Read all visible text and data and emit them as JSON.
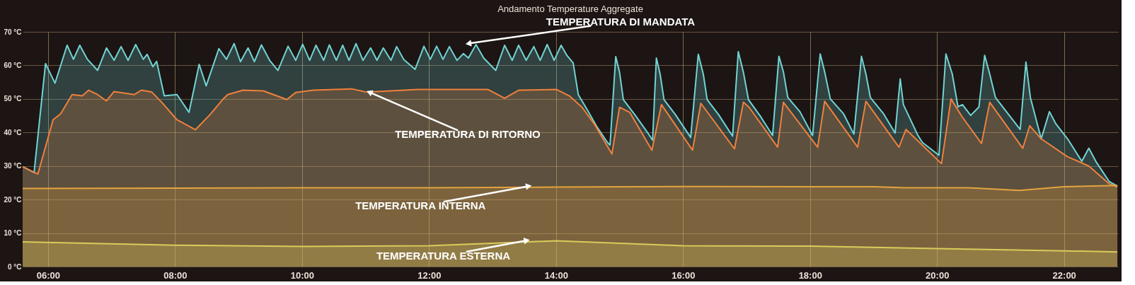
{
  "chart_data": {
    "type": "area",
    "title": "Andamento Temperature Aggregate",
    "xlim": [
      5.6,
      22.85
    ],
    "ylim": [
      0,
      70
    ],
    "xticks": [
      {
        "value": 6,
        "label": "06:00"
      },
      {
        "value": 8,
        "label": "08:00"
      },
      {
        "value": 10,
        "label": "10:00"
      },
      {
        "value": 12,
        "label": "12:00"
      },
      {
        "value": 14,
        "label": "14:00"
      },
      {
        "value": 16,
        "label": "16:00"
      },
      {
        "value": 18,
        "label": "18:00"
      },
      {
        "value": 20,
        "label": "20:00"
      },
      {
        "value": 22,
        "label": "22:00"
      }
    ],
    "yticks": [
      {
        "value": 0,
        "label": "0 °C"
      },
      {
        "value": 10,
        "label": "10 °C"
      },
      {
        "value": 20,
        "label": "20 °C"
      },
      {
        "value": 30,
        "label": "30 °C"
      },
      {
        "value": 40,
        "label": "40 °C"
      },
      {
        "value": 50,
        "label": "50 °C"
      },
      {
        "value": 60,
        "label": "60 °C"
      },
      {
        "value": 70,
        "label": "70 °C"
      }
    ],
    "grid": true,
    "marker": "none",
    "line_style": "solid",
    "series": [
      {
        "color": "#72d3d3",
        "x": [
          5.6,
          5.78,
          5.96,
          6.11,
          6.3,
          6.4,
          6.5,
          6.62,
          6.78,
          6.92,
          7.04,
          7.15,
          7.26,
          7.38,
          7.5,
          7.56,
          7.65,
          7.71,
          7.83,
          8.03,
          8.22,
          8.38,
          8.49,
          8.69,
          8.81,
          8.93,
          9.03,
          9.15,
          9.25,
          9.36,
          9.49,
          9.62,
          9.78,
          9.9,
          10.01,
          10.12,
          10.22,
          10.34,
          10.43,
          10.54,
          10.64,
          10.74,
          10.85,
          10.96,
          11.08,
          11.18,
          11.28,
          11.4,
          11.49,
          11.6,
          11.78,
          11.92,
          12.02,
          12.12,
          12.22,
          12.32,
          12.44,
          12.54,
          12.62,
          12.74,
          12.86,
          13.05,
          13.19,
          13.31,
          13.41,
          13.53,
          13.65,
          13.75,
          13.86,
          13.97,
          14.08,
          14.17,
          14.27,
          14.35,
          14.49,
          14.65,
          14.81,
          14.85,
          14.94,
          15.0,
          15.06,
          15.24,
          15.44,
          15.52,
          15.58,
          15.64,
          15.7,
          15.88,
          16.12,
          16.24,
          16.32,
          16.38,
          16.56,
          16.78,
          16.87,
          16.95,
          17.03,
          17.23,
          17.41,
          17.51,
          17.58,
          17.65,
          17.84,
          18.04,
          18.16,
          18.23,
          18.32,
          18.53,
          18.69,
          18.81,
          18.88,
          18.95,
          19.16,
          19.34,
          19.42,
          19.47,
          19.7,
          19.77,
          20.03,
          20.14,
          20.24,
          20.33,
          20.4,
          20.53,
          20.66,
          20.75,
          20.83,
          20.92,
          21.12,
          21.31,
          21.4,
          21.47,
          21.64,
          21.77,
          21.87,
          22.07,
          22.28,
          22.39,
          22.5,
          22.71,
          22.84
        ],
        "values": [
          29.8,
          28,
          60.5,
          54.7,
          66,
          61.8,
          66,
          61.8,
          58.5,
          65.2,
          61.5,
          65.6,
          61.5,
          66.2,
          61.8,
          63.3,
          59.6,
          61.2,
          50.9,
          51.3,
          46,
          60.3,
          53.9,
          65,
          61.8,
          66.5,
          61.1,
          65.2,
          61.1,
          66.1,
          61.5,
          58.5,
          65.7,
          61.5,
          66.3,
          61.5,
          66,
          61.5,
          66.1,
          61.5,
          66,
          61.5,
          66.5,
          61.5,
          65.2,
          61.5,
          65.2,
          61.5,
          65.6,
          61.8,
          58.8,
          65.7,
          61.8,
          65.7,
          61.8,
          65.6,
          61.5,
          63.5,
          62.2,
          66.2,
          62.2,
          58.5,
          66,
          61.5,
          66,
          61.5,
          65.6,
          61.5,
          66.2,
          61.5,
          66,
          63,
          60.7,
          51.3,
          46.8,
          41.5,
          37,
          36.2,
          62.6,
          58,
          49.8,
          45.3,
          40,
          37.7,
          62.2,
          57.3,
          49.8,
          45.3,
          38.5,
          63.3,
          57.3,
          49.8,
          45.3,
          38.9,
          64.1,
          58,
          49.8,
          44.5,
          39.1,
          62.7,
          58.1,
          50.4,
          46.2,
          39.1,
          63.4,
          58.1,
          50,
          45.5,
          39.5,
          62.7,
          57.4,
          50.4,
          45.5,
          39.8,
          56,
          48.3,
          39.1,
          37,
          33.2,
          63.4,
          57.4,
          47.6,
          48.3,
          45.1,
          47.6,
          63,
          57.4,
          50.4,
          45.5,
          40.9,
          61,
          50.4,
          38.1,
          46.2,
          42.6,
          37.7,
          31.4,
          35.3,
          31.4,
          25.4,
          24
        ]
      },
      {
        "color": "#f0803c",
        "x": [
          5.6,
          5.84,
          6.08,
          6.2,
          6.38,
          6.54,
          6.64,
          6.78,
          6.92,
          7.04,
          7.36,
          7.47,
          7.63,
          7.79,
          8.03,
          8.32,
          8.55,
          8.75,
          8.83,
          9.07,
          9.39,
          9.76,
          9.9,
          10.18,
          10.78,
          11.02,
          11.82,
          12.93,
          13.19,
          13.41,
          14.01,
          14.21,
          14.41,
          14.61,
          14.88,
          15.0,
          15.16,
          15.51,
          15.66,
          16.15,
          16.28,
          16.81,
          16.95,
          17.04,
          17.49,
          17.58,
          18.12,
          18.23,
          18.75,
          18.88,
          19.4,
          19.51,
          20.07,
          20.22,
          20.39,
          20.7,
          20.83,
          21.35,
          21.46,
          21.64,
          22.05,
          22.39,
          22.71,
          22.84
        ],
        "values": [
          29.8,
          27.6,
          43.8,
          45.6,
          51.3,
          50.9,
          52.6,
          51.3,
          49.4,
          52.2,
          51.3,
          52.6,
          52.1,
          49,
          43.8,
          40.8,
          45.3,
          49.8,
          51.3,
          52.6,
          52.4,
          49.8,
          51.9,
          52.6,
          53,
          52,
          52.8,
          52.8,
          50.2,
          52.6,
          52.8,
          50.9,
          47.5,
          42.3,
          33.6,
          47.5,
          46,
          34.7,
          48.3,
          34.7,
          48.7,
          35.1,
          49,
          47.5,
          35.6,
          49,
          35.6,
          49.3,
          35.6,
          49.3,
          35.6,
          40.9,
          30.7,
          50,
          44.8,
          36.7,
          49,
          35.3,
          42,
          38.1,
          32.8,
          30,
          24.7,
          23.7
        ]
      },
      {
        "color": "#e3a43e",
        "x": [
          5.6,
          8,
          10,
          12,
          14,
          16,
          18,
          19,
          19.5,
          20.5,
          21.3,
          22,
          22.84
        ],
        "values": [
          23.3,
          23.4,
          23.5,
          23.5,
          23.7,
          23.9,
          23.8,
          23.8,
          23.5,
          23.5,
          22.7,
          23.8,
          24.2
        ]
      },
      {
        "color": "#d9cc5a",
        "x": [
          5.6,
          8,
          10,
          12,
          14,
          16,
          18,
          20,
          22,
          22.84
        ],
        "values": [
          7.4,
          6.4,
          6,
          6.2,
          7.7,
          6.2,
          6.1,
          5.4,
          4.7,
          4.4
        ]
      }
    ],
    "annotations": [
      {
        "text": "TEMPERATURA DI MANDATA",
        "x": 12.62,
        "y": 66.5
      },
      {
        "text": "TEMPERATURA DI RITORNO",
        "x": 11.06,
        "y": 52
      },
      {
        "text": "TEMPERATURA INTERNA",
        "x": 13.57,
        "y": 24
      },
      {
        "text": "TEMPERATURA ESTERNA",
        "x": 13.54,
        "y": 7.8
      }
    ]
  }
}
